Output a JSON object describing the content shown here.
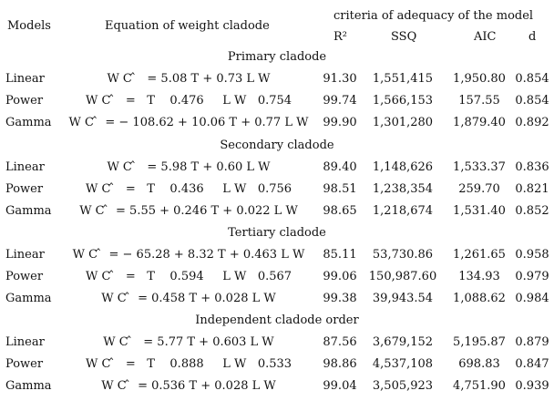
{
  "header": {
    "models": "Models",
    "equation": "Equation of weight cladode",
    "criteria": "criteria of adequacy of the model",
    "r2": "R²",
    "ssq": "SSQ",
    "aic": "AIC",
    "d": "d"
  },
  "sections": [
    {
      "title": "Primary cladode",
      "rows": [
        {
          "model": "Linear",
          "equation": "W C ̂   = 5.08 T + 0.73 L W",
          "r2": "91.30",
          "ssq": "1,551,415",
          "aic": "1,950.80",
          "d": "0.854"
        },
        {
          "model": "Power",
          "equation": "W C ̂   =   T    0.476     L W   0.754",
          "r2": "99.74",
          "ssq": "1,566,153",
          "aic": "157.55",
          "d": "0.854"
        },
        {
          "model": "Gamma",
          "equation": "W C ̂  = − 108.62 + 10.06 T + 0.77 L W",
          "r2": "99.90",
          "ssq": "1,301,280",
          "aic": "1,879.40",
          "d": "0.892"
        }
      ]
    },
    {
      "title": "Secondary cladode",
      "rows": [
        {
          "model": "Linear",
          "equation": "W C ̂   = 5.98 T + 0.60 L W",
          "r2": "89.40",
          "ssq": "1,148,626",
          "aic": "1,533.37",
          "d": "0.836"
        },
        {
          "model": "Power",
          "equation": "W C ̂   =   T    0.436     L W   0.756",
          "r2": "98.51",
          "ssq": "1,238,354",
          "aic": "259.70",
          "d": "0.821"
        },
        {
          "model": "Gamma",
          "equation": "W C ̂  = 5.55 + 0.246 T + 0.022 L W",
          "r2": "98.65",
          "ssq": "1,218,674",
          "aic": "1,531.40",
          "d": "0.852"
        }
      ]
    },
    {
      "title": "Tertiary cladode",
      "rows": [
        {
          "model": "Linear",
          "equation": "W C ̂  = − 65.28 + 8.32 T + 0.463 L W",
          "r2": "85.11",
          "ssq": "53,730.86",
          "aic": "1,261.65",
          "d": "0.958"
        },
        {
          "model": "Power",
          "equation": "W C ̂   =   T    0.594     L W   0.567",
          "r2": "99.06",
          "ssq": "150,987.60",
          "aic": "134.93",
          "d": "0.979"
        },
        {
          "model": "Gamma",
          "equation": "W C ̂  = 0.458 T + 0.028 L W",
          "r2": "99.38",
          "ssq": "39,943.54",
          "aic": "1,088.62",
          "d": "0.984"
        }
      ]
    },
    {
      "title": "Independent cladode order",
      "rows": [
        {
          "model": "Linear",
          "equation": "W C ̂   = 5.77 T + 0.603 L W",
          "r2": "87.56",
          "ssq": "3,679,152",
          "aic": "5,195.87",
          "d": "0.879"
        },
        {
          "model": "Power",
          "equation": "W C ̂   =   T    0.888     L W   0.533",
          "r2": "98.86",
          "ssq": "4,537,108",
          "aic": "698.83",
          "d": "0.847"
        },
        {
          "model": "Gamma",
          "equation": "W C ̂  = 0.536 T + 0.028 L W",
          "r2": "99.04",
          "ssq": "3,505,923",
          "aic": "4,751.90",
          "d": "0.939"
        }
      ]
    }
  ]
}
